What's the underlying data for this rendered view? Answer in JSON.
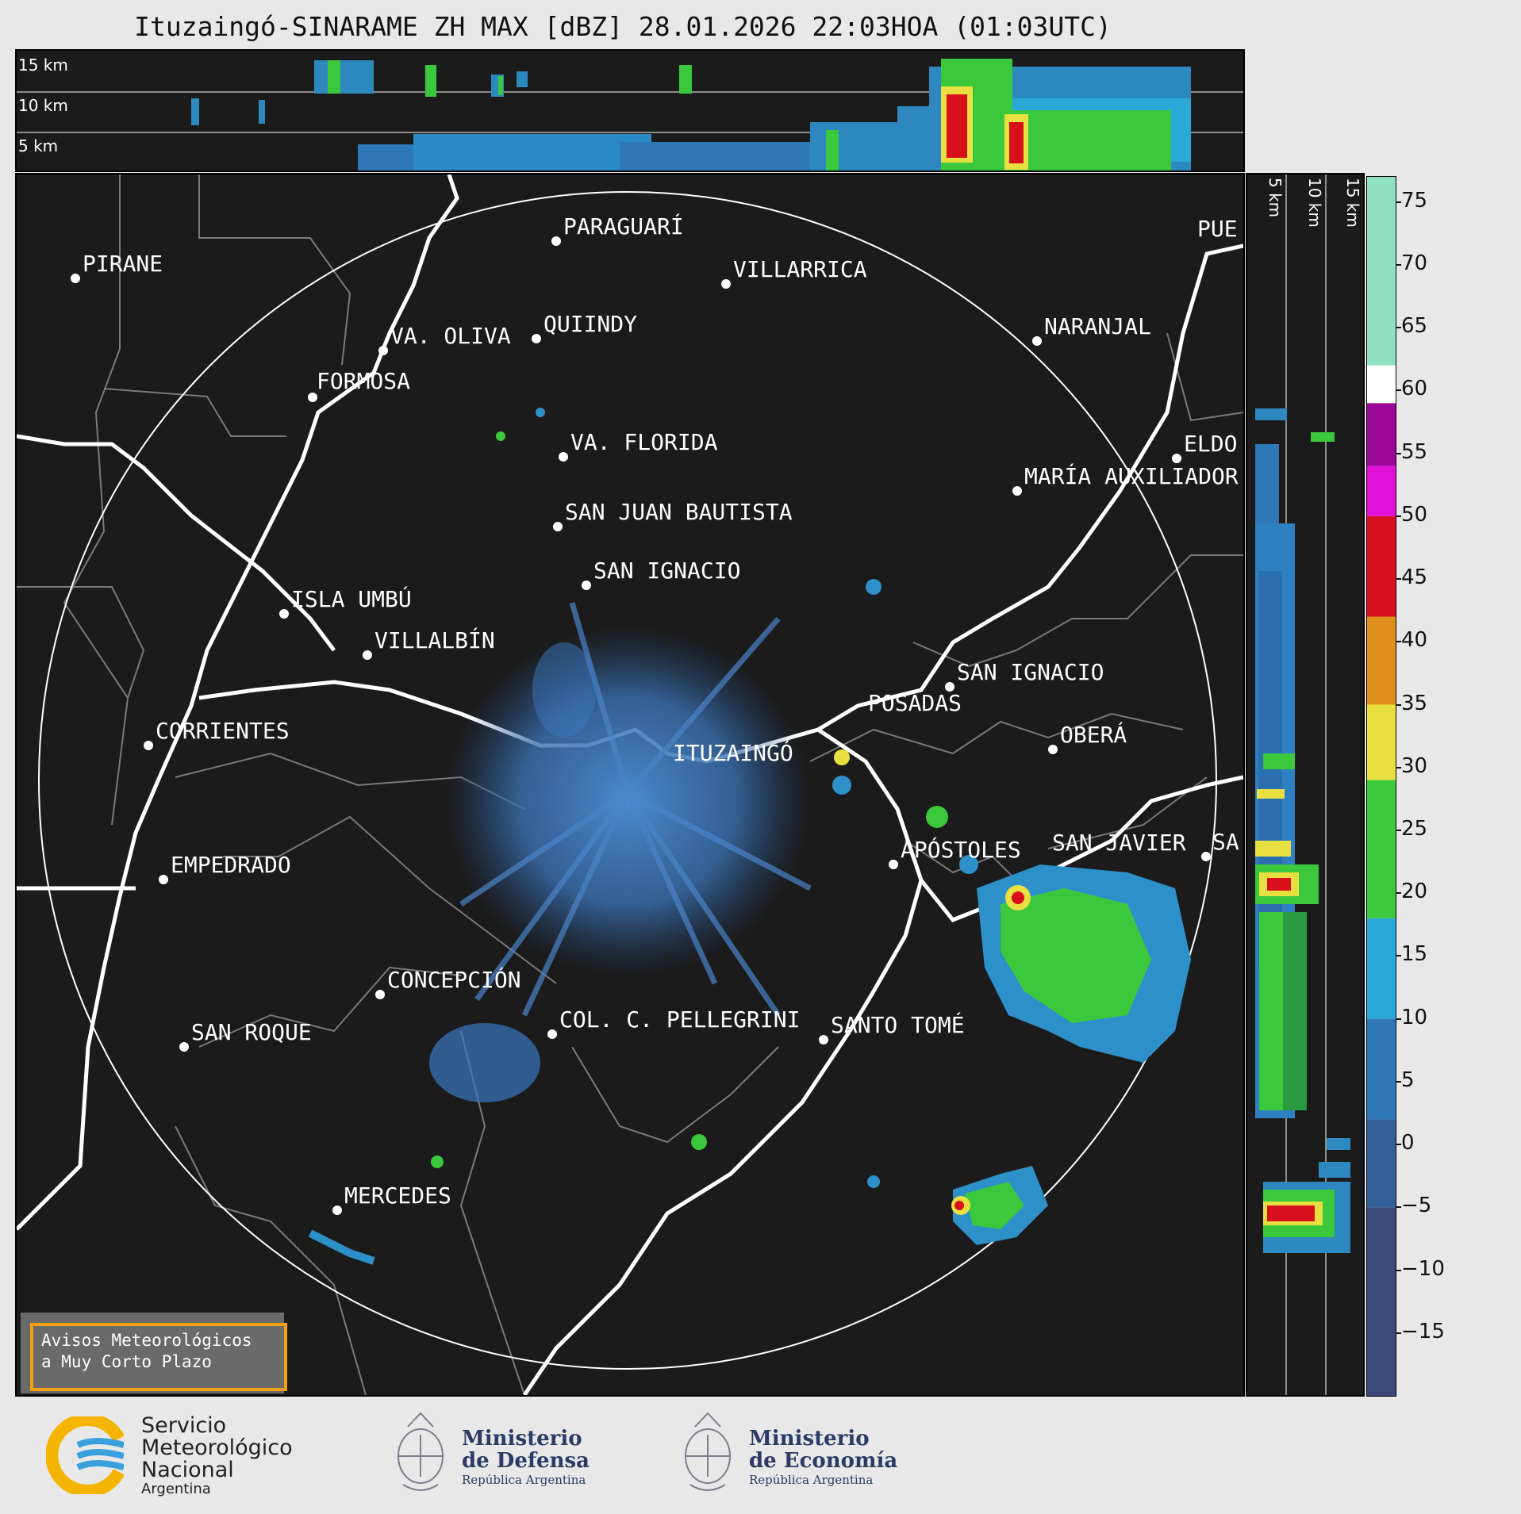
{
  "title": "Ituzaingó-SINARAME ZH MAX [dBZ] 28.01.2026 22:03HOA (01:03UTC)",
  "top_panel": {
    "alt_labels": [
      "15 km",
      "10 km",
      "5 km"
    ]
  },
  "side_panel": {
    "alt_labels": [
      "5 km",
      "10 km",
      "15 km"
    ]
  },
  "cities": [
    {
      "name": "PARAGUARÍ"
    },
    {
      "name": "PIRANE"
    },
    {
      "name": "VILLARRICA"
    },
    {
      "name": "PUE"
    },
    {
      "name": "VA. OLIVA"
    },
    {
      "name": "QUIINDY"
    },
    {
      "name": "NARANJAL"
    },
    {
      "name": "FORMOSA"
    },
    {
      "name": "VA. FLORIDA"
    },
    {
      "name": "ELDO"
    },
    {
      "name": "MARÍA AUXILIADOR"
    },
    {
      "name": "SAN JUAN BAUTISTA"
    },
    {
      "name": "SAN IGNACIO"
    },
    {
      "name": "ISLA UMBÚ"
    },
    {
      "name": "VILLALBÍN"
    },
    {
      "name": "SAN IGNACIO"
    },
    {
      "name": "POSADAS"
    },
    {
      "name": "CORRIENTES"
    },
    {
      "name": "ITUZAINGÓ"
    },
    {
      "name": "OBERÁ"
    },
    {
      "name": "SAN JAVIER"
    },
    {
      "name": "SA"
    },
    {
      "name": "APÓSTOLES"
    },
    {
      "name": "EMPEDRADO"
    },
    {
      "name": "CONCEPCIÓN"
    },
    {
      "name": "COL. C. PELLEGRINI"
    },
    {
      "name": "SANTO TOMÉ"
    },
    {
      "name": "SAN ROQUE"
    },
    {
      "name": "MERCEDES"
    }
  ],
  "colorbar": {
    "unit": "dBZ",
    "ticks": [
      "75",
      "70",
      "65",
      "60",
      "55",
      "50",
      "45",
      "40",
      "35",
      "30",
      "25",
      "20",
      "15",
      "10",
      "5",
      "0",
      "−5",
      "−10",
      "−15"
    ],
    "range": [
      -20,
      77
    ],
    "colors": {
      "blue_low": "#3a4a7a",
      "blue_mid": "#2e78b8",
      "cyan": "#2aa8d8",
      "green": "#3cc83c",
      "yellow": "#e8e040",
      "orange": "#e0901c",
      "red": "#d8101c",
      "magenta": "#e010d8",
      "purple": "#9a0898",
      "white": "#ffffff",
      "aqua": "#8ee0c0"
    }
  },
  "warning_box": {
    "line1": "Avisos Meteorológicos",
    "line2": "a Muy Corto Plazo"
  },
  "footer": {
    "smn": {
      "line1": "Servicio",
      "line2": "Meteorológico",
      "line3": "Nacional",
      "line4": "Argentina"
    },
    "defensa": {
      "line1": "Ministerio",
      "line2": "de Defensa",
      "line3": "República Argentina"
    },
    "economia": {
      "line1": "Ministerio",
      "line2": "de Economía",
      "line3": "República Argentina"
    }
  }
}
